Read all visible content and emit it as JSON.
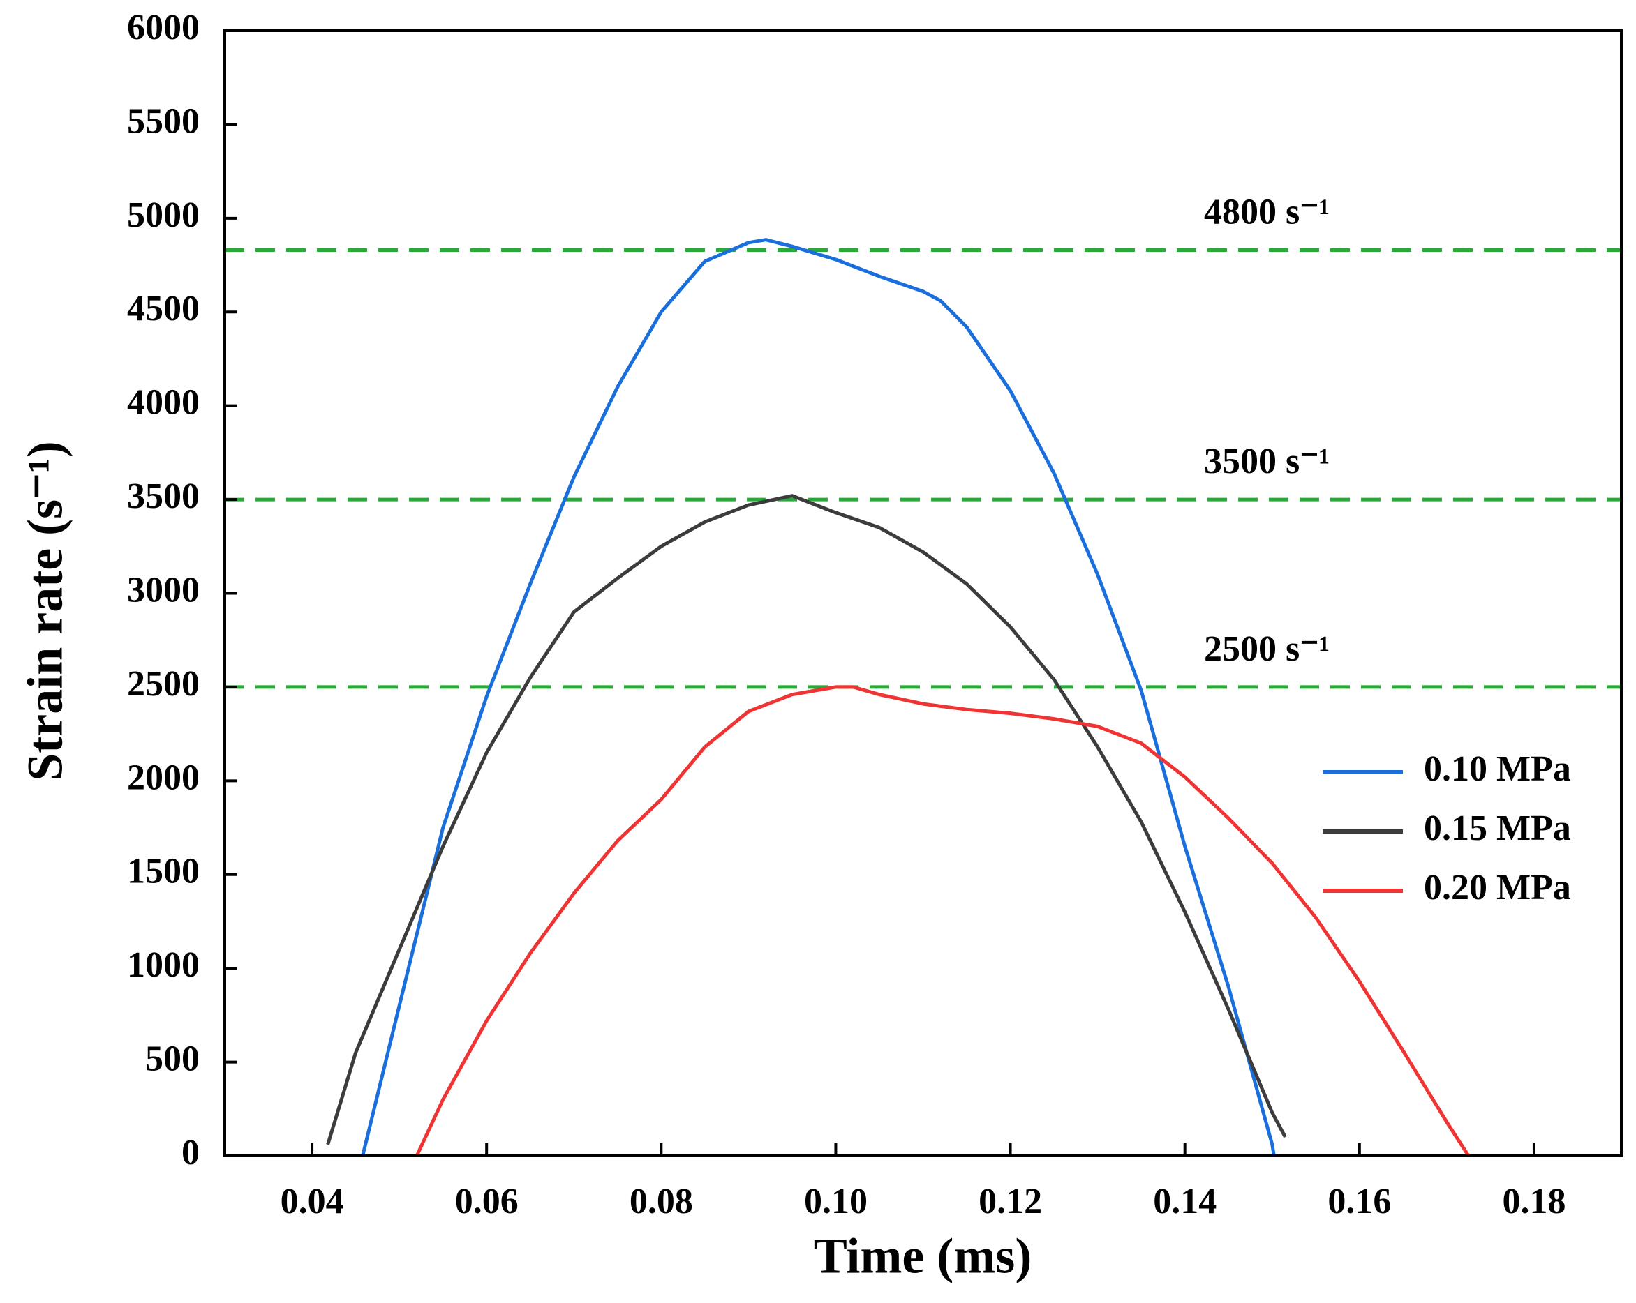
{
  "chart_data": {
    "type": "line",
    "xlabel": "Time (ms)",
    "ylabel": "Strain rate (s⁻¹)",
    "xlim": [
      0.03,
      0.19
    ],
    "ylim": [
      0,
      6000
    ],
    "xticks": [
      {
        "value": 0.04,
        "label": "0.04"
      },
      {
        "value": 0.06,
        "label": "0.06"
      },
      {
        "value": 0.08,
        "label": "0.08"
      },
      {
        "value": 0.1,
        "label": "0.10"
      },
      {
        "value": 0.12,
        "label": "0.12"
      },
      {
        "value": 0.14,
        "label": "0.14"
      },
      {
        "value": 0.16,
        "label": "0.16"
      },
      {
        "value": 0.18,
        "label": "0.18"
      }
    ],
    "yticks": [
      0,
      500,
      1000,
      1500,
      2000,
      2500,
      3000,
      3500,
      4000,
      4500,
      5000,
      5500,
      6000
    ],
    "legend": "right-middle",
    "reference_lines": [
      {
        "value": 4830,
        "annotation": "4800 s⁻¹",
        "color": "#2aa839"
      },
      {
        "value": 3500,
        "annotation": "3500 s⁻¹",
        "color": "#2aa839"
      },
      {
        "value": 2500,
        "annotation": "2500 s⁻¹",
        "color": "#2aa839"
      }
    ],
    "series": [
      {
        "name": "0.10 MPa",
        "color": "#1a6fdc",
        "x": [
          0.0458,
          0.05,
          0.055,
          0.06,
          0.065,
          0.07,
          0.075,
          0.08,
          0.085,
          0.09,
          0.092,
          0.095,
          0.1,
          0.105,
          0.11,
          0.112,
          0.115,
          0.12,
          0.125,
          0.13,
          0.135,
          0.14,
          0.145,
          0.15,
          0.1502
        ],
        "values": [
          0,
          800,
          1750,
          2450,
          3050,
          3620,
          4100,
          4500,
          4770,
          4870,
          4885,
          4850,
          4780,
          4690,
          4610,
          4560,
          4420,
          4080,
          3640,
          3100,
          2480,
          1650,
          900,
          60,
          0
        ]
      },
      {
        "name": "0.15 MPa",
        "color": "#3c3c3c",
        "x": [
          0.0418,
          0.045,
          0.05,
          0.055,
          0.06,
          0.065,
          0.07,
          0.075,
          0.08,
          0.085,
          0.09,
          0.095,
          0.1,
          0.105,
          0.11,
          0.115,
          0.12,
          0.125,
          0.13,
          0.135,
          0.14,
          0.145,
          0.15,
          0.1515
        ],
        "values": [
          60,
          550,
          1100,
          1650,
          2150,
          2550,
          2900,
          3080,
          3250,
          3380,
          3470,
          3520,
          3430,
          3350,
          3220,
          3050,
          2820,
          2540,
          2180,
          1780,
          1300,
          780,
          230,
          100
        ]
      },
      {
        "name": "0.20 MPa",
        "color": "#f03434",
        "x": [
          0.052,
          0.055,
          0.06,
          0.065,
          0.07,
          0.075,
          0.08,
          0.085,
          0.09,
          0.095,
          0.1,
          0.102,
          0.105,
          0.11,
          0.115,
          0.12,
          0.125,
          0.13,
          0.135,
          0.14,
          0.145,
          0.15,
          0.155,
          0.16,
          0.165,
          0.17,
          0.1725
        ],
        "values": [
          0,
          300,
          720,
          1080,
          1400,
          1680,
          1900,
          2180,
          2370,
          2460,
          2500,
          2500,
          2460,
          2410,
          2380,
          2360,
          2330,
          2290,
          2200,
          2020,
          1800,
          1560,
          1270,
          930,
          560,
          180,
          0
        ]
      }
    ]
  }
}
